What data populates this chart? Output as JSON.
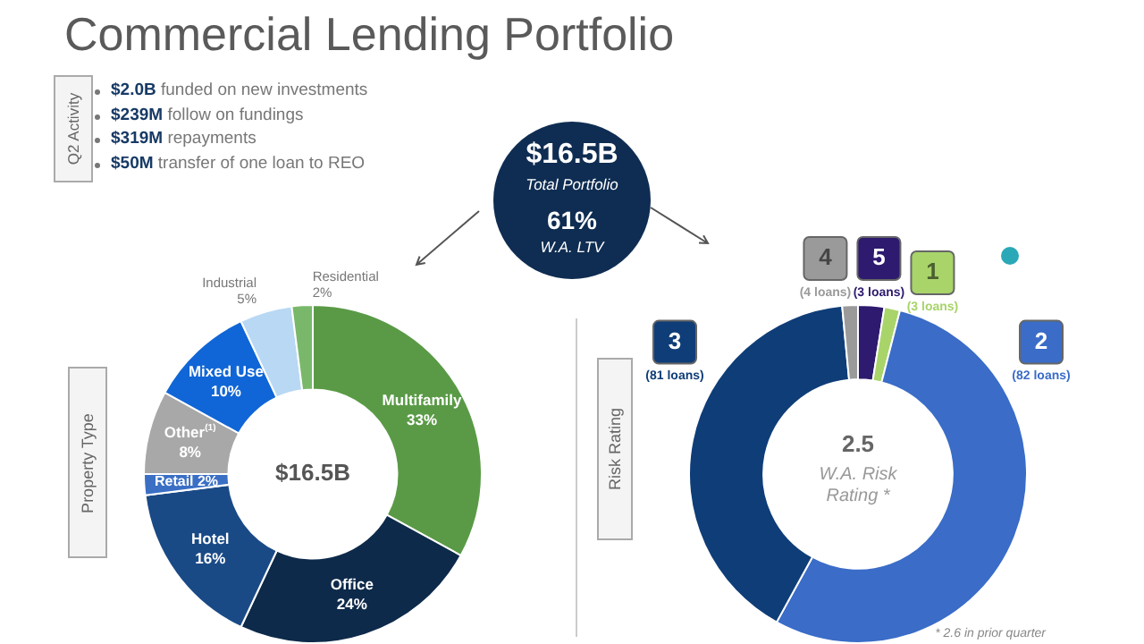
{
  "chart_data": [
    {
      "type": "other",
      "title": "Commercial Lending Portfolio",
      "annotations": [
        "Q2 Activity",
        "$2.0B funded on new investments",
        "$239M follow on fundings",
        "$319M repayments",
        "$50M transfer of one loan to REO",
        "$16.5B",
        "Total Portfolio",
        "61%",
        "W.A. LTV"
      ]
    },
    {
      "type": "donut",
      "title": "Property Type",
      "categories": [
        "Multifamily",
        "Office",
        "Hotel",
        "Retail",
        "Other$^{(1)}$",
        "Mixed Use",
        "Industrial",
        "Residential"
      ],
      "values": [
        33,
        24,
        16,
        2,
        8,
        10,
        5,
        2
      ],
      "value_labels": [
        "33%",
        "24%",
        "16%",
        "2%",
        "8%",
        "10%",
        "5%",
        "2%"
      ],
      "colors": [
        "#5a9a46",
        "#0d2a4a",
        "#1a4a86",
        "#3a6fc4",
        "#a8a8a8",
        "#1066d6",
        "#b8d8f4",
        "#79b86a"
      ],
      "annotations": [
        "$16.5B"
      ]
    },
    {
      "type": "donut",
      "title": "Risk Rating",
      "categories": [
        "5",
        "1",
        "2",
        "3",
        "4"
      ],
      "values": [
        2.5,
        1.5,
        54,
        40.5,
        1.5
      ],
      "colors": [
        "#2e1a6e",
        "#a8d46a",
        "#3a6cc8",
        "#0f3d78",
        "#9a9a9a"
      ],
      "annotations": [
        "2.5",
        "W.A. Risk Rating *",
        "* 2.6 in prior quarter",
        {
          "text": "(3 loans)",
          "x": "5"
        },
        {
          "text": "(3 loans)",
          "x": "1"
        },
        {
          "text": "(82 loans)",
          "x": "2"
        },
        {
          "text": "(81 loans)",
          "x": "3"
        },
        {
          "text": "(4 loans)",
          "x": "4"
        }
      ]
    }
  ]
}
